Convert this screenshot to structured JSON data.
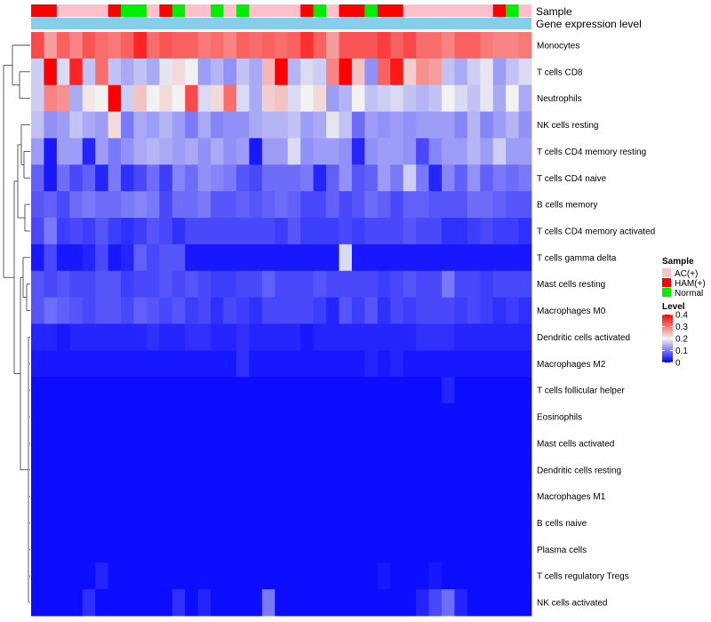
{
  "chart_data": {
    "type": "heatmap",
    "annotation_labels": [
      "Sample",
      "Gene expression level"
    ],
    "gene_expression_color": "#87CEEB",
    "sample_groups": [
      {
        "name": "AC(+)",
        "color": "#FFC0CB"
      },
      {
        "name": "HAM(+)",
        "color": "#FF0000"
      },
      {
        "name": "Normal",
        "color": "#00EE00"
      }
    ],
    "sample_annotation": [
      "HAM(+)",
      "HAM(+)",
      "AC(+)",
      "AC(+)",
      "AC(+)",
      "AC(+)",
      "HAM(+)",
      "Normal",
      "Normal",
      "AC(+)",
      "HAM(+)",
      "Normal",
      "AC(+)",
      "AC(+)",
      "Normal",
      "AC(+)",
      "Normal",
      "AC(+)",
      "AC(+)",
      "AC(+)",
      "AC(+)",
      "HAM(+)",
      "Normal",
      "AC(+)",
      "HAM(+)",
      "HAM(+)",
      "Normal",
      "HAM(+)",
      "HAM(+)",
      "AC(+)",
      "AC(+)",
      "AC(+)",
      "AC(+)",
      "AC(+)",
      "AC(+)",
      "AC(+)",
      "HAM(+)",
      "Normal",
      "AC(+)"
    ],
    "legend": {
      "sample_title": "Sample",
      "level_title": "Level",
      "level_ticks": [
        "0.4",
        "0.3",
        "0.2",
        "0.1",
        "0"
      ],
      "range": [
        0,
        0.4
      ],
      "colors": {
        "low": "#0000FF",
        "mid": "#F2F2F2",
        "high": "#FF0000"
      }
    },
    "rows": [
      "Monocytes",
      "T cells CD8",
      "Neutrophils",
      "NK cells resting",
      "T cells CD4 memory resting",
      "T cells CD4 naive",
      "B cells memory",
      "T cells CD4 memory activated",
      "T cells gamma delta",
      "Mast cells resting",
      "Macrophages M0",
      "Dendritic cells activated",
      "Macrophages M2",
      "T cells follicular helper",
      "Eosinophils",
      "Mast cells activated",
      "Dendritic cells resting",
      "Macrophages M1",
      "B cells naive",
      "Plasma cells",
      "T cells regulatory  Tregs",
      "NK cells activated"
    ],
    "values": [
      [
        0.34,
        0.27,
        0.32,
        0.29,
        0.33,
        0.31,
        0.3,
        0.32,
        0.37,
        0.31,
        0.33,
        0.32,
        0.32,
        0.3,
        0.31,
        0.29,
        0.32,
        0.31,
        0.32,
        0.31,
        0.32,
        0.36,
        0.32,
        0.27,
        0.33,
        0.33,
        0.33,
        0.35,
        0.32,
        0.34,
        0.31,
        0.31,
        0.29,
        0.32,
        0.32,
        0.3,
        0.29,
        0.29,
        0.3
      ],
      [
        0.17,
        0.4,
        0.18,
        0.37,
        0.16,
        0.31,
        0.16,
        0.14,
        0.16,
        0.14,
        0.19,
        0.22,
        0.2,
        0.13,
        0.15,
        0.12,
        0.16,
        0.14,
        0.25,
        0.42,
        0.15,
        0.18,
        0.17,
        0.29,
        0.42,
        0.24,
        0.12,
        0.32,
        0.38,
        0.23,
        0.28,
        0.27,
        0.16,
        0.14,
        0.17,
        0.19,
        0.13,
        0.16,
        0.18
      ],
      [
        0.17,
        0.29,
        0.28,
        0.14,
        0.21,
        0.2,
        0.4,
        0.17,
        0.24,
        0.2,
        0.22,
        0.2,
        0.34,
        0.18,
        0.22,
        0.31,
        0.18,
        0.14,
        0.23,
        0.24,
        0.18,
        0.2,
        0.22,
        0.13,
        0.15,
        0.2,
        0.16,
        0.17,
        0.18,
        0.16,
        0.15,
        0.16,
        0.2,
        0.18,
        0.16,
        0.19,
        0.14,
        0.2,
        0.14
      ],
      [
        0.16,
        0.12,
        0.13,
        0.16,
        0.14,
        0.13,
        0.22,
        0.1,
        0.14,
        0.13,
        0.15,
        0.13,
        0.1,
        0.14,
        0.11,
        0.12,
        0.12,
        0.14,
        0.15,
        0.15,
        0.16,
        0.13,
        0.14,
        0.19,
        0.16,
        0.09,
        0.13,
        0.12,
        0.13,
        0.12,
        0.13,
        0.13,
        0.13,
        0.11,
        0.15,
        0.11,
        0.13,
        0.15,
        0.12
      ],
      [
        0.13,
        0.02,
        0.13,
        0.13,
        0.03,
        0.13,
        0.1,
        0.12,
        0.14,
        0.15,
        0.14,
        0.13,
        0.14,
        0.12,
        0.14,
        0.12,
        0.13,
        0.02,
        0.13,
        0.13,
        0.18,
        0.12,
        0.13,
        0.13,
        0.12,
        0.03,
        0.12,
        0.13,
        0.13,
        0.12,
        0.06,
        0.11,
        0.13,
        0.13,
        0.15,
        0.13,
        0.17,
        0.13,
        0.13
      ],
      [
        0.08,
        0.02,
        0.09,
        0.06,
        0.08,
        0.03,
        0.1,
        0.04,
        0.06,
        0.09,
        0.05,
        0.11,
        0.09,
        0.12,
        0.11,
        0.1,
        0.07,
        0.06,
        0.09,
        0.09,
        0.09,
        0.1,
        0.03,
        0.08,
        0.12,
        0.07,
        0.08,
        0.13,
        0.1,
        0.17,
        0.1,
        0.03,
        0.11,
        0.08,
        0.12,
        0.08,
        0.1,
        0.09,
        0.1
      ],
      [
        0.07,
        0.08,
        0.06,
        0.09,
        0.1,
        0.09,
        0.09,
        0.1,
        0.11,
        0.1,
        0.06,
        0.09,
        0.09,
        0.1,
        0.07,
        0.07,
        0.08,
        0.07,
        0.08,
        0.09,
        0.08,
        0.06,
        0.06,
        0.08,
        0.06,
        0.07,
        0.09,
        0.08,
        0.06,
        0.08,
        0.08,
        0.07,
        0.07,
        0.07,
        0.09,
        0.09,
        0.08,
        0.07,
        0.07
      ],
      [
        0.06,
        0.1,
        0.05,
        0.06,
        0.05,
        0.07,
        0.05,
        0.04,
        0.05,
        0.07,
        0.06,
        0.04,
        0.06,
        0.06,
        0.06,
        0.06,
        0.06,
        0.06,
        0.06,
        0.05,
        0.07,
        0.05,
        0.05,
        0.05,
        0.06,
        0.05,
        0.06,
        0.06,
        0.06,
        0.07,
        0.06,
        0.06,
        0.04,
        0.04,
        0.05,
        0.06,
        0.05,
        0.05,
        0.04
      ],
      [
        0.02,
        0.06,
        0.02,
        0.02,
        0.03,
        0.06,
        0.02,
        0.03,
        0.08,
        0.06,
        0.07,
        0.07,
        0.02,
        0.02,
        0.02,
        0.02,
        0.02,
        0.02,
        0.02,
        0.02,
        0.02,
        0.02,
        0.02,
        0.02,
        0.18,
        0.02,
        0.02,
        0.02,
        0.02,
        0.02,
        0.02,
        0.02,
        0.02,
        0.02,
        0.02,
        0.02,
        0.02,
        0.02,
        0.02
      ],
      [
        0.07,
        0.06,
        0.07,
        0.06,
        0.06,
        0.07,
        0.07,
        0.05,
        0.06,
        0.06,
        0.07,
        0.06,
        0.07,
        0.06,
        0.05,
        0.05,
        0.06,
        0.06,
        0.08,
        0.06,
        0.06,
        0.06,
        0.07,
        0.06,
        0.06,
        0.06,
        0.06,
        0.05,
        0.06,
        0.07,
        0.06,
        0.06,
        0.1,
        0.06,
        0.06,
        0.05,
        0.06,
        0.06,
        0.06
      ],
      [
        0.07,
        0.09,
        0.08,
        0.07,
        0.06,
        0.07,
        0.07,
        0.06,
        0.08,
        0.07,
        0.06,
        0.07,
        0.05,
        0.06,
        0.04,
        0.06,
        0.05,
        0.04,
        0.06,
        0.06,
        0.06,
        0.06,
        0.05,
        0.03,
        0.07,
        0.05,
        0.07,
        0.04,
        0.06,
        0.05,
        0.06,
        0.06,
        0.06,
        0.05,
        0.06,
        0.05,
        0.04,
        0.05,
        0.04
      ],
      [
        0.03,
        0.03,
        0.02,
        0.03,
        0.03,
        0.03,
        0.03,
        0.03,
        0.03,
        0.04,
        0.03,
        0.03,
        0.04,
        0.04,
        0.03,
        0.03,
        0.04,
        0.03,
        0.03,
        0.03,
        0.03,
        0.02,
        0.03,
        0.03,
        0.03,
        0.03,
        0.03,
        0.03,
        0.03,
        0.03,
        0.04,
        0.04,
        0.04,
        0.03,
        0.03,
        0.03,
        0.03,
        0.03,
        0.03
      ],
      [
        0.02,
        0.02,
        0.02,
        0.02,
        0.02,
        0.02,
        0.02,
        0.02,
        0.02,
        0.02,
        0.02,
        0.02,
        0.02,
        0.02,
        0.02,
        0.02,
        0.04,
        0.02,
        0.02,
        0.02,
        0.02,
        0.02,
        0.02,
        0.02,
        0.02,
        0.02,
        0.03,
        0.02,
        0.03,
        0.02,
        0.02,
        0.02,
        0.02,
        0.02,
        0.02,
        0.02,
        0.02,
        0.02,
        0.02
      ],
      [
        0.01,
        0.01,
        0.01,
        0.01,
        0.01,
        0.01,
        0.01,
        0.01,
        0.01,
        0.01,
        0.01,
        0.01,
        0.01,
        0.01,
        0.01,
        0.01,
        0.01,
        0.01,
        0.01,
        0.01,
        0.01,
        0.01,
        0.01,
        0.01,
        0.01,
        0.01,
        0.01,
        0.01,
        0.01,
        0.01,
        0.01,
        0.01,
        0.03,
        0.01,
        0.01,
        0.01,
        0.01,
        0.01,
        0.01
      ],
      [
        0.01,
        0.01,
        0.01,
        0.01,
        0.01,
        0.01,
        0.01,
        0.01,
        0.01,
        0.01,
        0.01,
        0.01,
        0.01,
        0.01,
        0.01,
        0.01,
        0.01,
        0.01,
        0.01,
        0.01,
        0.01,
        0.01,
        0.01,
        0.01,
        0.01,
        0.01,
        0.01,
        0.01,
        0.01,
        0.01,
        0.01,
        0.01,
        0.01,
        0.01,
        0.01,
        0.01,
        0.01,
        0.01,
        0.01
      ],
      [
        0.01,
        0.01,
        0.01,
        0.01,
        0.01,
        0.01,
        0.01,
        0.01,
        0.01,
        0.01,
        0.01,
        0.01,
        0.01,
        0.01,
        0.01,
        0.01,
        0.01,
        0.01,
        0.01,
        0.01,
        0.01,
        0.01,
        0.01,
        0.01,
        0.01,
        0.01,
        0.01,
        0.01,
        0.01,
        0.01,
        0.01,
        0.01,
        0.01,
        0.01,
        0.01,
        0.01,
        0.01,
        0.01,
        0.01
      ],
      [
        0.01,
        0.01,
        0.01,
        0.01,
        0.01,
        0.01,
        0.01,
        0.01,
        0.01,
        0.01,
        0.01,
        0.01,
        0.01,
        0.01,
        0.01,
        0.01,
        0.01,
        0.01,
        0.01,
        0.01,
        0.01,
        0.01,
        0.01,
        0.01,
        0.01,
        0.01,
        0.01,
        0.01,
        0.01,
        0.01,
        0.01,
        0.01,
        0.01,
        0.01,
        0.01,
        0.01,
        0.01,
        0.01,
        0.01
      ],
      [
        0.01,
        0.01,
        0.01,
        0.01,
        0.01,
        0.01,
        0.01,
        0.01,
        0.01,
        0.01,
        0.01,
        0.01,
        0.01,
        0.01,
        0.01,
        0.01,
        0.01,
        0.01,
        0.01,
        0.01,
        0.01,
        0.01,
        0.01,
        0.01,
        0.01,
        0.01,
        0.01,
        0.01,
        0.01,
        0.01,
        0.01,
        0.01,
        0.01,
        0.01,
        0.01,
        0.01,
        0.01,
        0.01,
        0.01
      ],
      [
        0.01,
        0.01,
        0.01,
        0.01,
        0.01,
        0.01,
        0.01,
        0.01,
        0.01,
        0.01,
        0.01,
        0.01,
        0.01,
        0.01,
        0.01,
        0.01,
        0.01,
        0.01,
        0.01,
        0.01,
        0.01,
        0.01,
        0.01,
        0.01,
        0.01,
        0.01,
        0.01,
        0.01,
        0.01,
        0.01,
        0.01,
        0.01,
        0.01,
        0.01,
        0.01,
        0.01,
        0.01,
        0.01,
        0.01
      ],
      [
        0.01,
        0.01,
        0.01,
        0.01,
        0.01,
        0.01,
        0.01,
        0.01,
        0.01,
        0.01,
        0.01,
        0.01,
        0.01,
        0.01,
        0.01,
        0.01,
        0.01,
        0.01,
        0.01,
        0.01,
        0.01,
        0.01,
        0.01,
        0.01,
        0.01,
        0.01,
        0.01,
        0.01,
        0.01,
        0.01,
        0.01,
        0.01,
        0.01,
        0.01,
        0.01,
        0.01,
        0.01,
        0.01,
        0.01
      ],
      [
        0.01,
        0.01,
        0.01,
        0.01,
        0.01,
        0.03,
        0.01,
        0.01,
        0.01,
        0.01,
        0.01,
        0.01,
        0.01,
        0.01,
        0.01,
        0.01,
        0.01,
        0.01,
        0.01,
        0.01,
        0.01,
        0.01,
        0.01,
        0.01,
        0.01,
        0.01,
        0.01,
        0.02,
        0.01,
        0.01,
        0.01,
        0.02,
        0.01,
        0.01,
        0.01,
        0.01,
        0.01,
        0.01,
        0.01
      ],
      [
        0.01,
        0.01,
        0.01,
        0.01,
        0.04,
        0.01,
        0.01,
        0.01,
        0.01,
        0.01,
        0.01,
        0.04,
        0.01,
        0.03,
        0.01,
        0.01,
        0.01,
        0.01,
        0.1,
        0.01,
        0.01,
        0.01,
        0.01,
        0.01,
        0.01,
        0.01,
        0.01,
        0.01,
        0.01,
        0.01,
        0.03,
        0.06,
        0.09,
        0.03,
        0.01,
        0.01,
        0.01,
        0.01,
        0.01
      ]
    ]
  }
}
